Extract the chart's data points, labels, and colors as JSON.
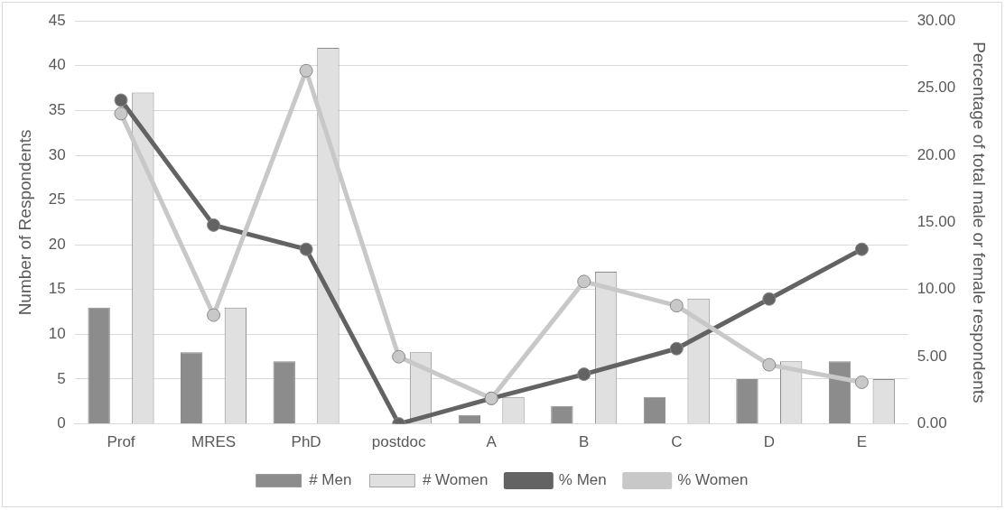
{
  "chart_data": {
    "type": "bar",
    "categories": [
      "Prof",
      "MRES",
      "PhD",
      "postdoc",
      "A",
      "B",
      "C",
      "D",
      "E"
    ],
    "ylabel": "Number of Respondents",
    "y2label": "Percentage of total male or female respondents",
    "ylim": [
      0,
      45
    ],
    "yticks": [
      0,
      5,
      10,
      15,
      20,
      25,
      30,
      35,
      40,
      45
    ],
    "y2lim": [
      0,
      30
    ],
    "y2ticks": [
      {
        "value": 0,
        "label": "0.00"
      },
      {
        "value": 5,
        "label": "5.00"
      },
      {
        "value": 10,
        "label": "10.00"
      },
      {
        "value": 15,
        "label": "15.00"
      },
      {
        "value": 20,
        "label": "20.00"
      },
      {
        "value": 25,
        "label": "25.00"
      },
      {
        "value": 30,
        "label": "30.00"
      }
    ],
    "grid": "y",
    "legend": "bottom",
    "marker": "circle",
    "series": [
      {
        "name": "# Men",
        "color": "#8c8c8c",
        "values": [
          13,
          8,
          7,
          0,
          1,
          2,
          3,
          5,
          7
        ]
      },
      {
        "name": "# Women",
        "color": "#e0e0e0",
        "values": [
          37,
          13,
          42,
          8,
          3,
          17,
          14,
          7,
          5
        ]
      },
      {
        "name": "% Men",
        "type": "line",
        "axis": "y2",
        "color": "#636363",
        "values": [
          24.1,
          14.8,
          13.0,
          0,
          1.9,
          3.7,
          5.6,
          9.3,
          13.0
        ]
      },
      {
        "name": "% Women",
        "type": "line",
        "axis": "y2",
        "color": "#c8c8c8",
        "values": [
          23.1,
          8.1,
          26.3,
          5.0,
          1.9,
          10.6,
          8.8,
          4.4,
          3.1
        ]
      }
    ]
  }
}
